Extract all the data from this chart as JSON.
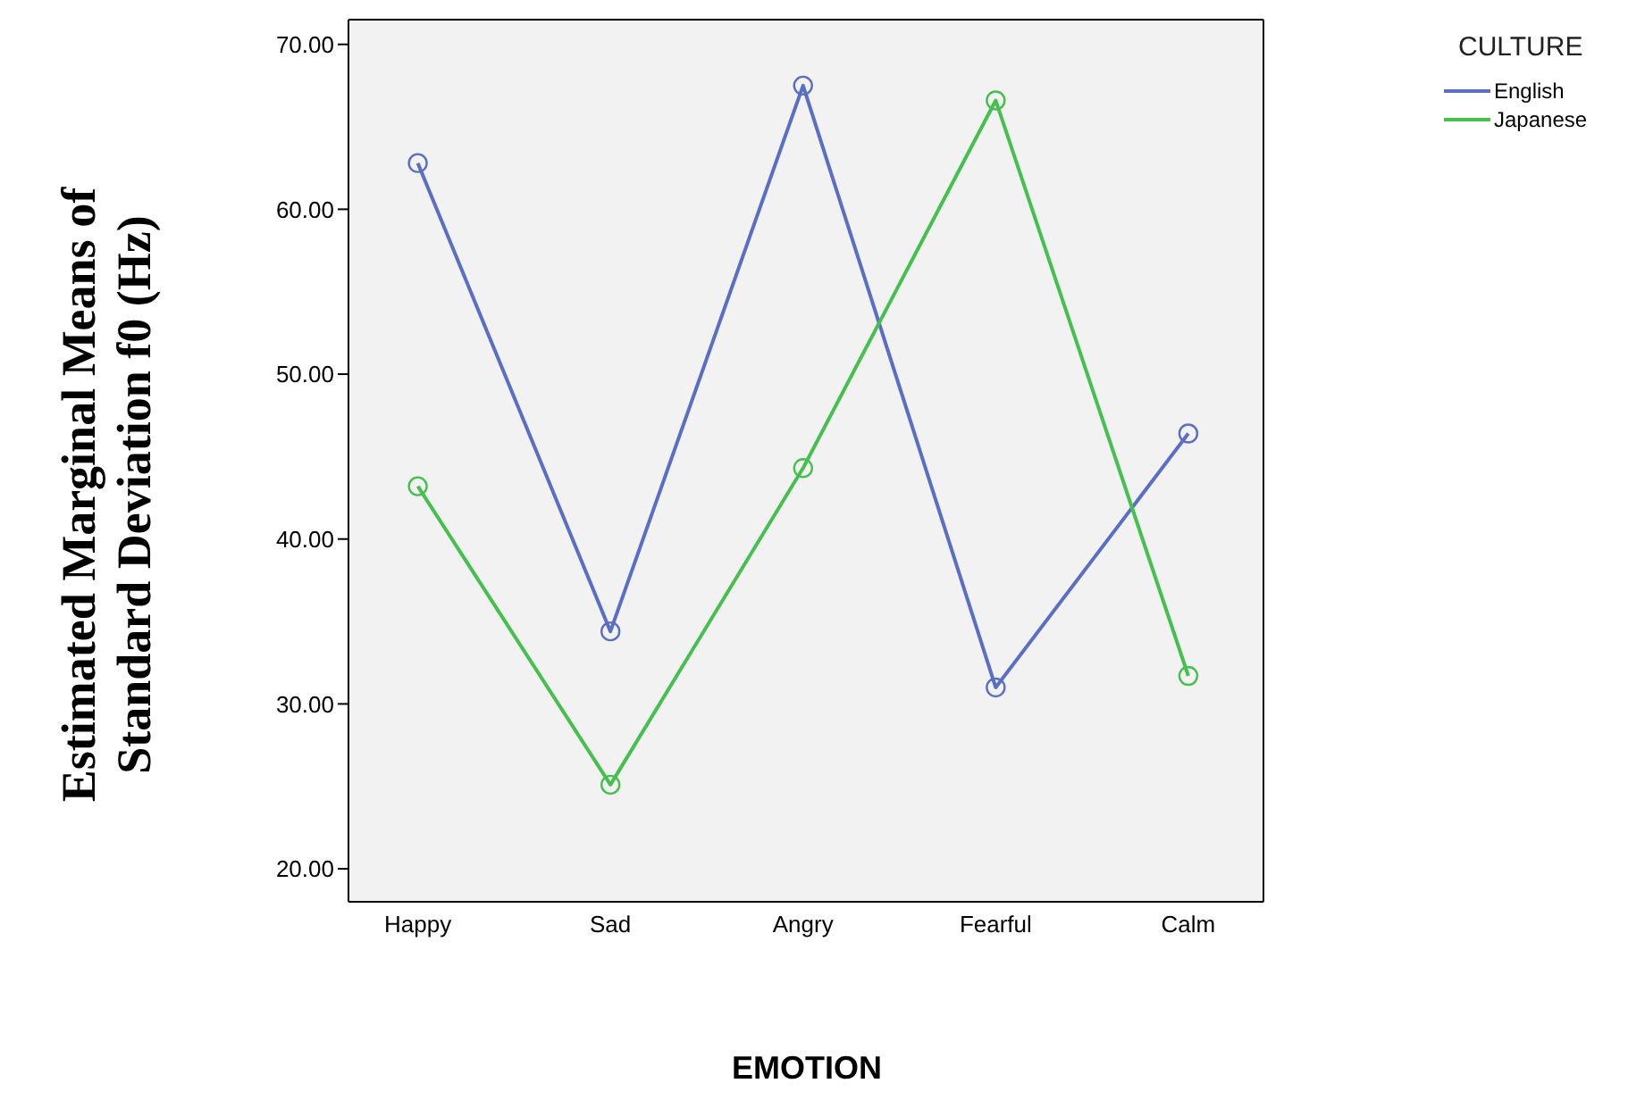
{
  "chart_data": {
    "type": "line",
    "xlabel": "EMOTION",
    "ylabel": "Estimated Marginal Means of\nStandard Deviation f0 (Hz)",
    "legend_title": "CULTURE",
    "legend": "right",
    "categories": [
      "Happy",
      "Sad",
      "Angry",
      "Fearful",
      "Calm"
    ],
    "series": [
      {
        "name": "English",
        "color": "#5a6fc4",
        "values": [
          62.8,
          34.4,
          67.5,
          31.0,
          46.4
        ]
      },
      {
        "name": "Japanese",
        "color": "#45c04e",
        "values": [
          43.2,
          25.1,
          44.3,
          66.6,
          31.7
        ]
      }
    ],
    "ylim": [
      18,
      71.5
    ],
    "yticks": [
      {
        "value": 20,
        "label": "20.00"
      },
      {
        "value": 30,
        "label": "30.00"
      },
      {
        "value": 40,
        "label": "40.00"
      },
      {
        "value": 50,
        "label": "50.00"
      },
      {
        "value": 60,
        "label": "60.00"
      },
      {
        "value": 70,
        "label": "70.00"
      }
    ],
    "marker": "circle",
    "grid": false
  }
}
